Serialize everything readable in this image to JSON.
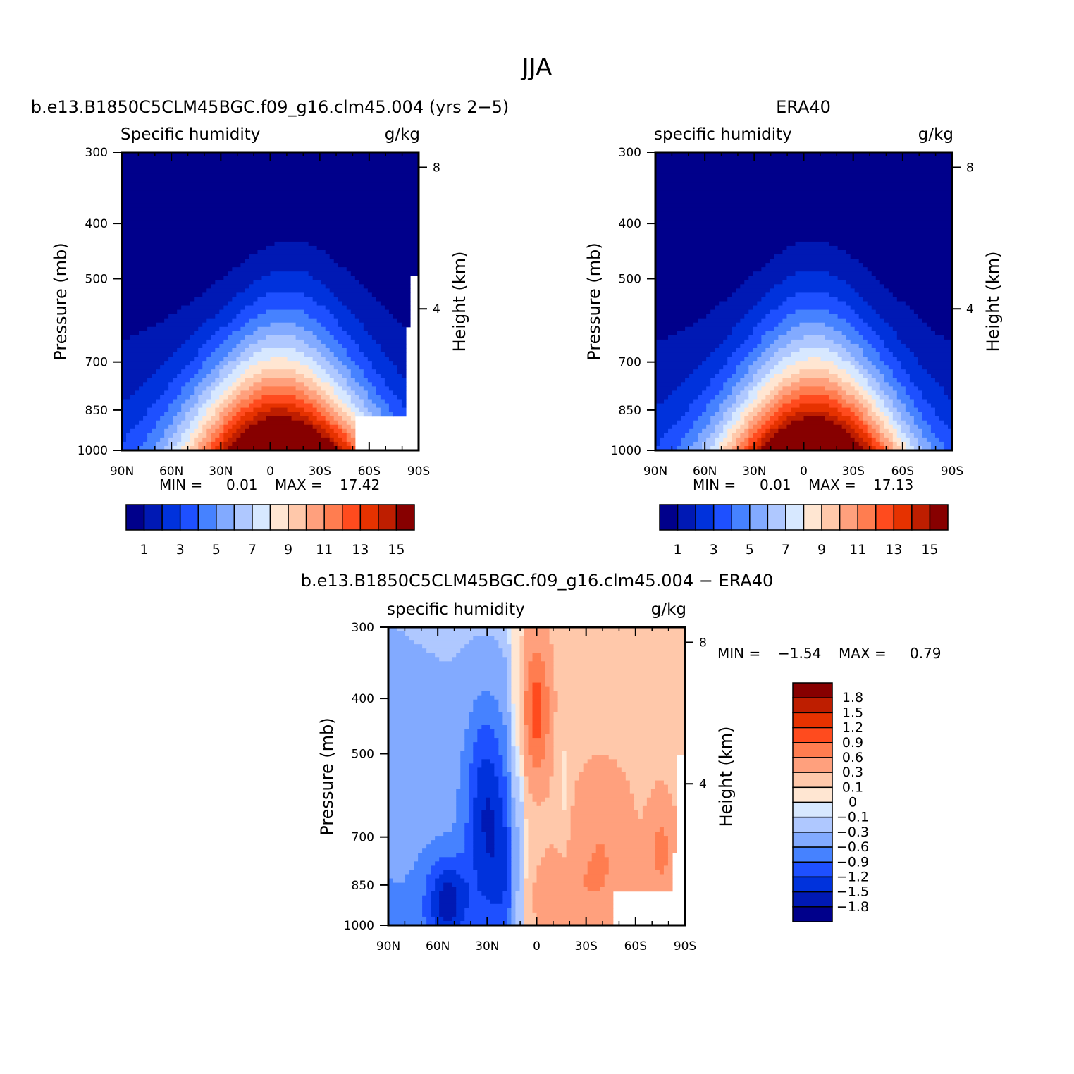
{
  "figure": {
    "season": "JJA"
  },
  "palette": [
    "#00008b",
    "#0019b4",
    "#0032dc",
    "#1e50ff",
    "#4682ff",
    "#82aaff",
    "#afc8ff",
    "#d7e8ff",
    "#ffe6d2",
    "#ffc8aa",
    "#ffa07d",
    "#ff7d50",
    "#ff4b1e",
    "#e63200",
    "#be1e00",
    "#870000"
  ],
  "chart_data": [
    {
      "type": "heatmap",
      "panel": "model",
      "title": "b.e13.B1850C5CLM45BGC.f09_g16.clm45.004 (yrs 2−5)",
      "left_label": "Specific humidity",
      "units": "g/kg",
      "ylabel": "Pressure (mb)",
      "y2label": "Height (km)",
      "x_ticks": [
        "90N",
        "60N",
        "30N",
        "0",
        "30S",
        "60S",
        "90S"
      ],
      "y_ticks": [
        "300",
        "400",
        "500",
        "700",
        "850",
        "1000"
      ],
      "y2_ticks": [
        "8",
        "4"
      ],
      "min_label": "MIN =",
      "min_value": "0.01",
      "max_label": "MAX =",
      "max_value": "17.42",
      "colorbar_labels": [
        "1",
        "3",
        "5",
        "7",
        "9",
        "11",
        "13",
        "15"
      ],
      "contour_levels": [
        1,
        2,
        3,
        4,
        5,
        6,
        7,
        8,
        9,
        10,
        11,
        12,
        13,
        14,
        15
      ],
      "peak_lat": -10,
      "peak_value": 17.42,
      "missing_region": "south-of-60S below 850mb"
    },
    {
      "type": "heatmap",
      "panel": "obs",
      "title": "ERA40",
      "left_label": "specific humidity",
      "units": "g/kg",
      "ylabel": "Pressure (mb)",
      "y2label": "Height (km)",
      "x_ticks": [
        "90N",
        "60N",
        "30N",
        "0",
        "30S",
        "60S",
        "90S"
      ],
      "y_ticks": [
        "300",
        "400",
        "500",
        "700",
        "850",
        "1000"
      ],
      "y2_ticks": [
        "8",
        "4"
      ],
      "min_label": "MIN =",
      "min_value": "0.01",
      "max_label": "MAX =",
      "max_value": "17.13",
      "colorbar_labels": [
        "1",
        "3",
        "5",
        "7",
        "9",
        "11",
        "13",
        "15"
      ],
      "contour_levels": [
        1,
        2,
        3,
        4,
        5,
        6,
        7,
        8,
        9,
        10,
        11,
        12,
        13,
        14,
        15
      ],
      "peak_lat": -10,
      "peak_value": 17.13
    },
    {
      "type": "heatmap",
      "panel": "difference",
      "title": "b.e13.B1850C5CLM45BGC.f09_g16.clm45.004 − ERA40",
      "left_label": "specific humidity",
      "units": "g/kg",
      "ylabel": "Pressure (mb)",
      "y2label": "Height (km)",
      "x_ticks": [
        "90N",
        "60N",
        "30N",
        "0",
        "30S",
        "60S",
        "90S"
      ],
      "y_ticks": [
        "300",
        "400",
        "500",
        "700",
        "850",
        "1000"
      ],
      "y2_ticks": [
        "8",
        "4"
      ],
      "min_label": "MIN =",
      "min_value": "−1.54",
      "max_label": "MAX =",
      "max_value": "0.79",
      "colorbar_labels": [
        "1.8",
        "1.5",
        "1.2",
        "0.9",
        "0.6",
        "0.3",
        "0.1",
        "0",
        "−0.1",
        "−0.3",
        "−0.6",
        "−0.9",
        "−1.2",
        "−1.5",
        "−1.8"
      ],
      "contour_levels": [
        -1.8,
        -1.5,
        -1.2,
        -0.9,
        -0.6,
        -0.3,
        -0.1,
        0,
        0.1,
        0.3,
        0.6,
        0.9,
        1.2,
        1.5,
        1.8
      ]
    }
  ]
}
